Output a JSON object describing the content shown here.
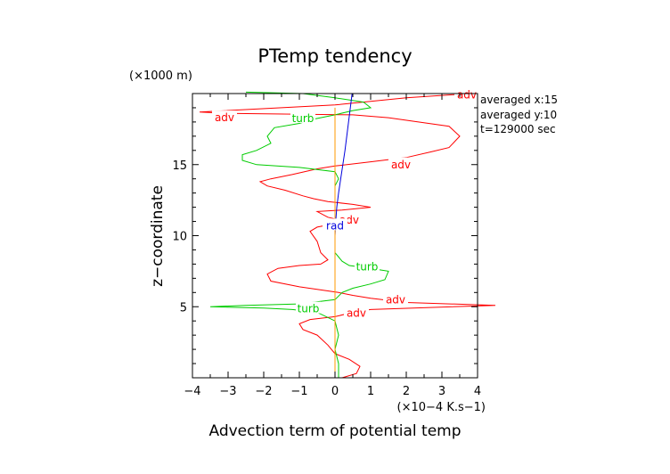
{
  "chart_data": {
    "type": "line",
    "title": "PTemp tendency",
    "xlabel": "Advection term of potential temp",
    "x_unit": "(×10−4 K.s−1)",
    "ylabel": "z−coordinate",
    "y_unit": "(×1000 m)",
    "xlim": [
      -4,
      4
    ],
    "ylim": [
      0,
      20
    ],
    "x_ticks": [
      -4,
      -3,
      -2,
      -1,
      0,
      1,
      2,
      3,
      4
    ],
    "y_ticks": [
      5,
      10,
      15
    ],
    "info": [
      "averaged  x:15",
      "averaged  y:10",
      "t=129000 sec"
    ],
    "series": [
      {
        "name": "adv",
        "color": "#ff0000",
        "points": [
          [
            0.2,
            0.0
          ],
          [
            0.6,
            0.3
          ],
          [
            0.7,
            0.8
          ],
          [
            0.4,
            1.3
          ],
          [
            0.0,
            1.7
          ],
          [
            -0.2,
            2.3
          ],
          [
            -0.5,
            3.0
          ],
          [
            -0.9,
            3.4
          ],
          [
            -1.0,
            3.8
          ],
          [
            -0.7,
            4.1
          ],
          [
            0.0,
            4.3
          ],
          [
            0.5,
            4.6
          ],
          [
            1.0,
            4.8
          ],
          [
            4.5,
            5.1
          ],
          [
            2.0,
            5.3
          ],
          [
            1.0,
            5.6
          ],
          [
            0.5,
            5.8
          ],
          [
            0.1,
            6.0
          ],
          [
            -1.0,
            6.4
          ],
          [
            -1.8,
            6.8
          ],
          [
            -1.9,
            7.3
          ],
          [
            -1.6,
            7.7
          ],
          [
            -1.0,
            7.9
          ],
          [
            -0.4,
            8.0
          ],
          [
            -0.2,
            8.3
          ],
          [
            -0.4,
            8.8
          ],
          [
            -0.5,
            9.6
          ],
          [
            -0.7,
            10.3
          ],
          [
            -0.5,
            10.6
          ],
          [
            -0.1,
            10.8
          ],
          [
            0.3,
            11.0
          ],
          [
            -0.2,
            11.3
          ],
          [
            -0.5,
            11.7
          ],
          [
            0.2,
            11.8
          ],
          [
            1.0,
            12.0
          ],
          [
            0.5,
            12.2
          ],
          [
            -0.2,
            12.4
          ],
          [
            -0.6,
            12.6
          ],
          [
            -0.9,
            12.8
          ],
          [
            -1.4,
            13.2
          ],
          [
            -1.9,
            13.5
          ],
          [
            -2.1,
            13.8
          ],
          [
            -1.8,
            14.0
          ],
          [
            -1.2,
            14.3
          ],
          [
            -0.5,
            14.7
          ],
          [
            0.0,
            14.9
          ],
          [
            1.0,
            15.2
          ],
          [
            2.0,
            15.5
          ],
          [
            2.7,
            15.9
          ],
          [
            3.2,
            16.2
          ],
          [
            3.5,
            17.0
          ],
          [
            3.2,
            17.7
          ],
          [
            1.5,
            18.3
          ],
          [
            0.5,
            18.5
          ],
          [
            -3.0,
            18.6
          ],
          [
            -3.8,
            18.7
          ],
          [
            0.0,
            19.2
          ],
          [
            2.0,
            19.7
          ],
          [
            3.8,
            20.0
          ]
        ],
        "labels": [
          {
            "text": "adv",
            "x": 3.7,
            "y": 19.9
          },
          {
            "text": "adv",
            "x": -3.1,
            "y": 18.3
          },
          {
            "text": "adv",
            "x": 1.85,
            "y": 15.0
          },
          {
            "text": "adv",
            "x": 0.4,
            "y": 11.1
          },
          {
            "text": "adv",
            "x": 1.7,
            "y": 5.5
          },
          {
            "text": "adv",
            "x": 0.6,
            "y": 4.55
          }
        ]
      },
      {
        "name": "turb",
        "color": "#00cc00",
        "points": [
          [
            0.1,
            0.0
          ],
          [
            0.1,
            1.0
          ],
          [
            0.0,
            2.0
          ],
          [
            0.1,
            3.0
          ],
          [
            0.0,
            4.0
          ],
          [
            -0.5,
            4.6
          ],
          [
            -1.2,
            4.8
          ],
          [
            -2.0,
            4.9
          ],
          [
            -3.5,
            5.0
          ],
          [
            -2.5,
            5.1
          ],
          [
            -1.0,
            5.2
          ],
          [
            0.0,
            5.5
          ],
          [
            0.2,
            6.0
          ],
          [
            0.5,
            6.3
          ],
          [
            1.0,
            6.6
          ],
          [
            1.4,
            6.9
          ],
          [
            1.5,
            7.5
          ],
          [
            1.0,
            7.7
          ],
          [
            0.4,
            7.9
          ],
          [
            0.2,
            8.2
          ],
          [
            0.0,
            8.8
          ],
          [
            0.0,
            9.5
          ],
          [
            0.0,
            10.0
          ],
          [
            0.0,
            10.5
          ],
          [
            0.0,
            11.0
          ],
          [
            0.0,
            11.5
          ],
          [
            0.0,
            12.0
          ],
          [
            0.0,
            12.5
          ],
          [
            0.0,
            13.0
          ],
          [
            0.0,
            13.5
          ],
          [
            0.1,
            14.0
          ],
          [
            0.0,
            14.5
          ],
          [
            -1.0,
            14.8
          ],
          [
            -2.2,
            15.0
          ],
          [
            -2.6,
            15.3
          ],
          [
            -2.6,
            15.7
          ],
          [
            -2.2,
            16.0
          ],
          [
            -1.8,
            16.5
          ],
          [
            -1.9,
            17.0
          ],
          [
            -1.7,
            17.6
          ],
          [
            -1.0,
            17.9
          ],
          [
            -0.6,
            18.2
          ],
          [
            0.0,
            18.5
          ],
          [
            0.5,
            18.8
          ],
          [
            1.0,
            19.0
          ],
          [
            0.8,
            19.4
          ],
          [
            0.0,
            19.7
          ],
          [
            -0.9,
            20.0
          ],
          [
            -2.5,
            20.1
          ]
        ],
        "labels": [
          {
            "text": "turb",
            "x": -0.9,
            "y": 18.25
          },
          {
            "text": "turb",
            "x": 0.9,
            "y": 7.8
          },
          {
            "text": "turb",
            "x": -0.75,
            "y": 4.85
          }
        ]
      },
      {
        "name": "rad",
        "color": "#0000dd",
        "points": [
          [
            0.0,
            0.0
          ],
          [
            0.0,
            2.0
          ],
          [
            0.0,
            4.0
          ],
          [
            0.0,
            6.0
          ],
          [
            0.0,
            8.0
          ],
          [
            0.0,
            10.0
          ],
          [
            0.02,
            11.0
          ],
          [
            0.05,
            12.0
          ],
          [
            0.1,
            13.0
          ],
          [
            0.16,
            14.0
          ],
          [
            0.22,
            15.0
          ],
          [
            0.28,
            16.0
          ],
          [
            0.33,
            17.0
          ],
          [
            0.38,
            18.0
          ],
          [
            0.43,
            19.0
          ],
          [
            0.48,
            20.0
          ]
        ],
        "labels": [
          {
            "text": "rad",
            "x": 0.0,
            "y": 10.7
          }
        ]
      },
      {
        "name": "",
        "color": "#ff9900",
        "points": [
          [
            0.0,
            0.0
          ],
          [
            0.0,
            5.0
          ],
          [
            0.0,
            10.0
          ],
          [
            0.0,
            15.0
          ],
          [
            0.0,
            18.0
          ],
          [
            0.0,
            19.0
          ]
        ],
        "labels": []
      }
    ]
  }
}
